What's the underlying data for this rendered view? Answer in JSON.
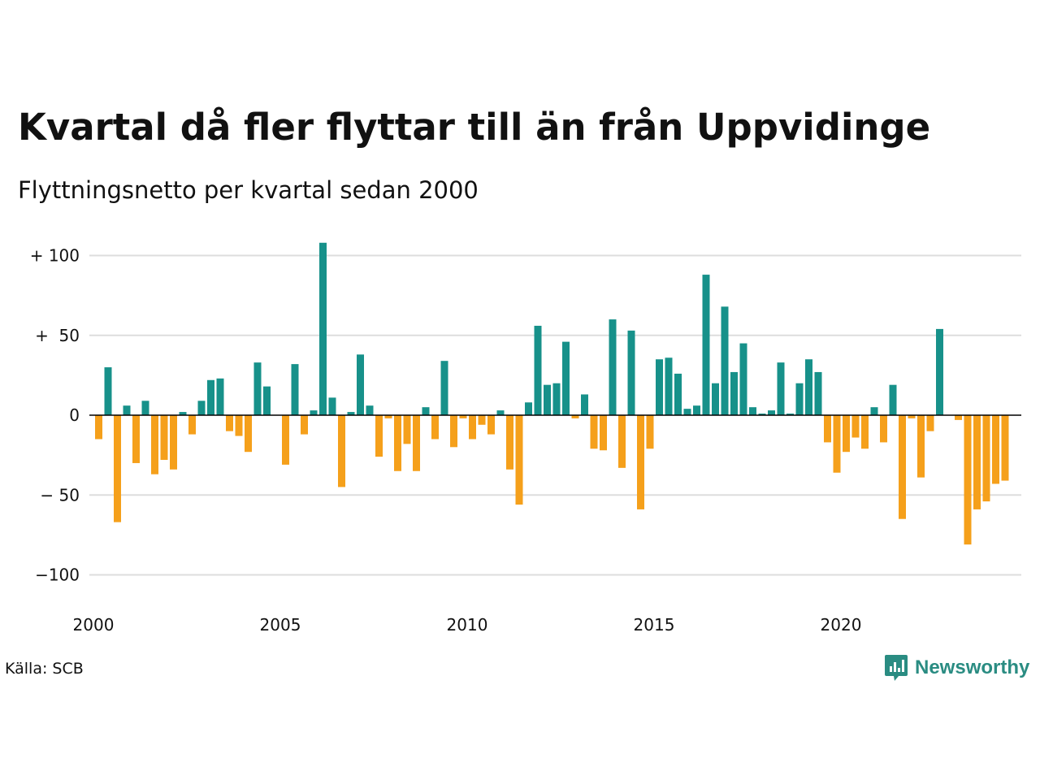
{
  "title": "Kvartal då fler flyttar till än från Uppvidinge",
  "subtitle": "Flyttningsnetto per kvartal sedan 2000",
  "source": "Källa: SCB",
  "logo_text": "Newsworthy",
  "colors": {
    "positive": "#17918a",
    "negative": "#f5a01b",
    "brand": "#2a8c82",
    "grid": "#dddddd",
    "zero": "#000000"
  },
  "chart_data": {
    "type": "bar",
    "x_start": "2000 Q1",
    "x_ticks": [
      "2000",
      "2005",
      "2010",
      "2015",
      "2020"
    ],
    "y_ticks": [
      "−100",
      "− 50",
      "0",
      "+  50",
      "+ 100"
    ],
    "y_tick_values": [
      -100,
      -50,
      0,
      50,
      100
    ],
    "ylim": [
      -110,
      112
    ],
    "values": [
      -15,
      30,
      -67,
      6,
      -30,
      9,
      -37,
      -28,
      -34,
      2,
      -12,
      9,
      22,
      23,
      -10,
      -13,
      -23,
      33,
      18,
      0,
      -31,
      32,
      -12,
      3,
      108,
      11,
      -45,
      2,
      38,
      6,
      -26,
      -2,
      -35,
      -18,
      -35,
      5,
      -15,
      34,
      -20,
      -2,
      -15,
      -6,
      -12,
      3,
      -34,
      -56,
      8,
      56,
      19,
      20,
      46,
      -2,
      13,
      -21,
      -22,
      60,
      -33,
      53,
      -59,
      -21,
      35,
      36,
      26,
      4,
      6,
      88,
      20,
      68,
      27,
      45,
      5,
      1,
      3,
      33,
      1,
      20,
      35,
      27,
      -17,
      -36,
      -23,
      -14,
      -21,
      5,
      -17,
      19,
      -65,
      -2,
      -39,
      -10,
      54,
      0,
      -3,
      -81,
      -59,
      -54,
      -43,
      -41
    ]
  }
}
